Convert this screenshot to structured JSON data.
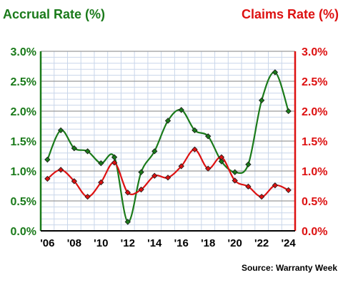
{
  "chart_data": {
    "type": "line",
    "x": [
      "'06",
      "'07",
      "'08",
      "'09",
      "'10",
      "'11",
      "'12",
      "'13",
      "'14",
      "'15",
      "'16",
      "'17",
      "'18",
      "'19",
      "'20",
      "'21",
      "'22",
      "'23",
      "'24"
    ],
    "x_tick_labels": [
      "'06",
      "'08",
      "'10",
      "'12",
      "'14",
      "'16",
      "'18",
      "'20",
      "'22",
      "'24"
    ],
    "series": [
      {
        "name": "Accrual Rate (%)",
        "axis": "left",
        "color": "#1a7a1a",
        "values": [
          1.19,
          1.68,
          1.38,
          1.33,
          1.13,
          1.23,
          0.15,
          0.98,
          1.33,
          1.84,
          2.02,
          1.68,
          1.58,
          1.16,
          0.98,
          1.11,
          2.18,
          2.65,
          2.0
        ]
      },
      {
        "name": "Claims Rate (%)",
        "axis": "right",
        "color": "#dd1111",
        "values": [
          0.87,
          1.02,
          0.83,
          0.57,
          0.81,
          1.14,
          0.64,
          0.69,
          0.92,
          0.89,
          1.08,
          1.36,
          1.04,
          1.23,
          0.84,
          0.74,
          0.57,
          0.76,
          0.68
        ]
      }
    ],
    "left_title": "Accrual Rate (%)",
    "right_title": "Claims Rate (%)",
    "left_color": "#1a7a1a",
    "right_color": "#dd1111",
    "ylim": [
      0,
      3.0
    ],
    "y_tick_labels": [
      "0.0%",
      "0.5%",
      "1.0%",
      "1.5%",
      "2.0%",
      "2.5%",
      "3.0%"
    ],
    "source": "Source: Warranty Week",
    "grid": true
  }
}
